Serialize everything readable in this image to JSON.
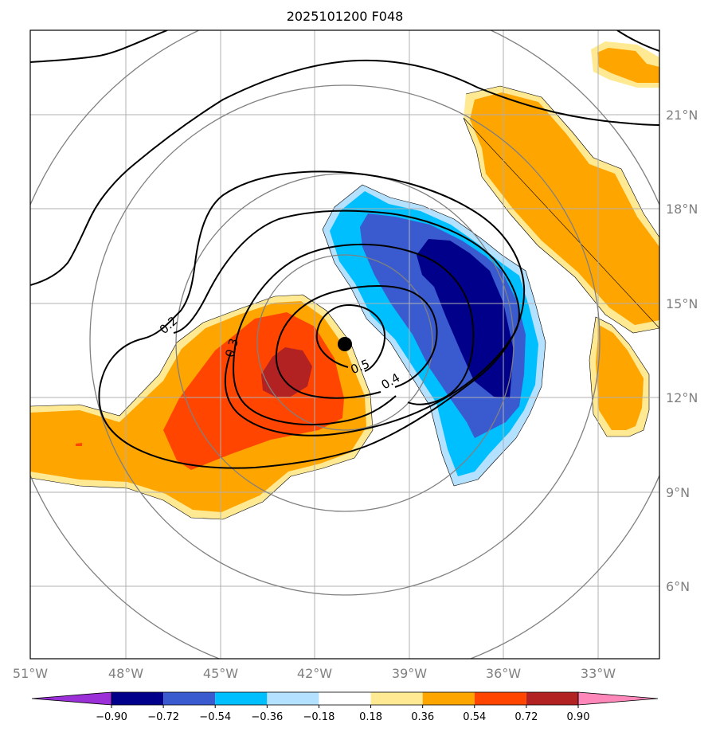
{
  "chart_data": {
    "type": "contour-map",
    "title": "2025101200 F048",
    "x_ticks": [
      "51°W",
      "48°W",
      "45°W",
      "42°W",
      "39°W",
      "36°W",
      "33°W"
    ],
    "x_values": [
      -51,
      -48,
      -45,
      -42,
      -39,
      -36,
      -33
    ],
    "y_ticks": [
      "6°N",
      "9°N",
      "12°N",
      "15°N",
      "18°N",
      "21°N"
    ],
    "y_values": [
      6,
      9,
      12,
      15,
      18,
      21
    ],
    "xlim": [
      -51,
      -31
    ],
    "ylim": [
      3.8,
      23.8
    ],
    "center": {
      "lon": -41,
      "lat": 13.7
    },
    "contour_labels": [
      "0.2",
      "0.3",
      "0.4",
      "0.5"
    ],
    "colorbar": {
      "levels": [
        "−0.90",
        "−0.72",
        "−0.54",
        "−0.36",
        "−0.18",
        "0.18",
        "0.36",
        "0.54",
        "0.72",
        "0.90"
      ],
      "colors": [
        "#9b30d9",
        "#00008b",
        "#3a5bd0",
        "#00bfff",
        "#b4e1ff",
        "#ffffff",
        "#ffe992",
        "#ffa500",
        "#ff4500",
        "#b22222",
        "#ff88bb"
      ]
    }
  }
}
